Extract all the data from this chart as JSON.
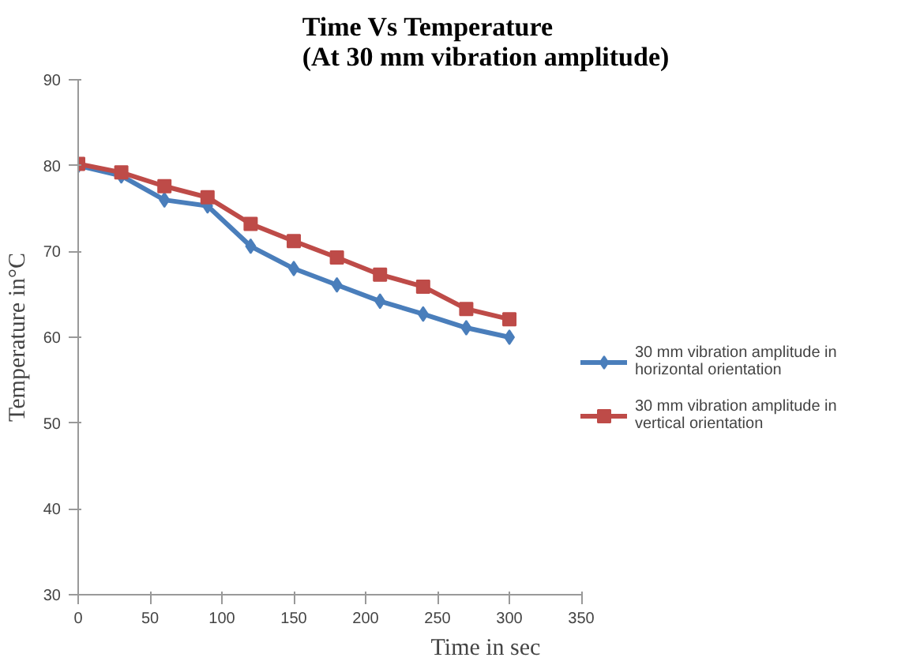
{
  "chart_data": {
    "type": "line",
    "title": "Time Vs Temperature\n(At 30 mm vibration amplitude)",
    "xlabel": "Time in sec",
    "ylabel": "Temperature in°C",
    "x": [
      0,
      30,
      60,
      90,
      120,
      150,
      180,
      210,
      240,
      270,
      300
    ],
    "series": [
      {
        "name": "30 mm vibration amplitude in\nhorizontal orientation",
        "color": "#4a7ebb",
        "marker": "diamond",
        "values": [
          80,
          78.8,
          76,
          75.3,
          70.6,
          68,
          66.1,
          64.2,
          62.7,
          61.1,
          60
        ]
      },
      {
        "name": "30 mm vibration amplitude in\nvertical orientation",
        "color": "#be4b48",
        "marker": "square",
        "values": [
          80.2,
          79.2,
          77.6,
          76.3,
          73.2,
          71.2,
          69.3,
          67.3,
          65.9,
          63.3,
          62.1
        ]
      }
    ],
    "xlim": [
      0,
      350
    ],
    "xticks": [
      0,
      50,
      100,
      150,
      200,
      250,
      300,
      350
    ],
    "ylim": [
      30,
      90
    ],
    "yticks": [
      30,
      40,
      50,
      60,
      70,
      80,
      90
    ],
    "grid": false,
    "legend": "right",
    "line_style": "solid"
  }
}
